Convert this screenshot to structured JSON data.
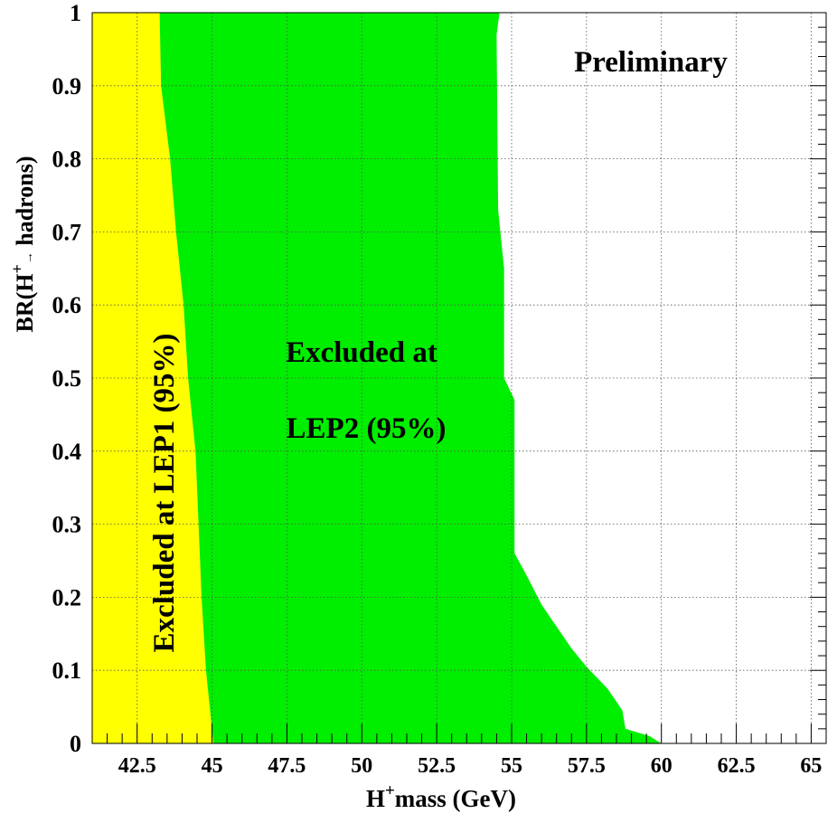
{
  "chart_data": {
    "type": "area",
    "title": "",
    "annotation_preliminary": "Preliminary",
    "xlabel_parts": {
      "base": "H",
      "sup": "+",
      "rest": "mass (GeV)"
    },
    "ylabel_parts": {
      "pre": "BR(H",
      "sup": "+",
      "arrow": "→",
      "rest": " hadrons)"
    },
    "xlim": [
      41,
      65.5
    ],
    "ylim": [
      0,
      1
    ],
    "x_ticks": [
      {
        "value": 42.5,
        "label": "42.5"
      },
      {
        "value": 45,
        "label": "45"
      },
      {
        "value": 47.5,
        "label": "47.5"
      },
      {
        "value": 50,
        "label": "50"
      },
      {
        "value": 52.5,
        "label": "52.5"
      },
      {
        "value": 55,
        "label": "55"
      },
      {
        "value": 57.5,
        "label": "57.5"
      },
      {
        "value": 60,
        "label": "60"
      },
      {
        "value": 62.5,
        "label": "62.5"
      },
      {
        "value": 65,
        "label": "65"
      }
    ],
    "y_ticks": [
      {
        "value": 0,
        "label": "0"
      },
      {
        "value": 0.1,
        "label": "0.1"
      },
      {
        "value": 0.2,
        "label": "0.2"
      },
      {
        "value": 0.3,
        "label": "0.3"
      },
      {
        "value": 0.4,
        "label": "0.4"
      },
      {
        "value": 0.5,
        "label": "0.5"
      },
      {
        "value": 0.6,
        "label": "0.6"
      },
      {
        "value": 0.7,
        "label": "0.7"
      },
      {
        "value": 0.8,
        "label": "0.8"
      },
      {
        "value": 0.9,
        "label": "0.9"
      },
      {
        "value": 1,
        "label": "1"
      }
    ],
    "grid": true,
    "regions": [
      {
        "name": "LEP2 excluded",
        "label_lines": [
          "Excluded at",
          "LEP2 (95%)"
        ],
        "color": "#00ee00",
        "boundary": [
          [
            54.6,
            1.0
          ],
          [
            54.5,
            0.97
          ],
          [
            54.55,
            0.73
          ],
          [
            54.75,
            0.65
          ],
          [
            54.75,
            0.5
          ],
          [
            55.1,
            0.47
          ],
          [
            55.1,
            0.26
          ],
          [
            55.5,
            0.23
          ],
          [
            56.0,
            0.19
          ],
          [
            56.5,
            0.16
          ],
          [
            57.0,
            0.13
          ],
          [
            57.5,
            0.105
          ],
          [
            58.2,
            0.075
          ],
          [
            58.7,
            0.045
          ],
          [
            58.8,
            0.02
          ],
          [
            59.6,
            0.01
          ],
          [
            60.0,
            0.0
          ]
        ]
      },
      {
        "name": "LEP1 excluded",
        "label": "Excluded at LEP1 (95%)",
        "color": "#ffff00",
        "boundary": [
          [
            43.25,
            1.0
          ],
          [
            43.3,
            0.9
          ],
          [
            43.6,
            0.8
          ],
          [
            43.8,
            0.7
          ],
          [
            44.05,
            0.6
          ],
          [
            44.2,
            0.5
          ],
          [
            44.45,
            0.4
          ],
          [
            44.55,
            0.3
          ],
          [
            44.65,
            0.2
          ],
          [
            44.8,
            0.1
          ],
          [
            45.05,
            0.0
          ]
        ]
      }
    ]
  }
}
